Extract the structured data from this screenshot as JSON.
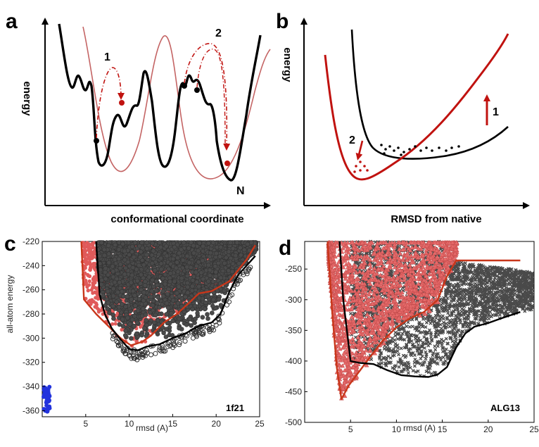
{
  "panels": {
    "a": {
      "letter": "a",
      "ylabel": "energy",
      "xlabel": "conformational coordinate",
      "annot_1": "1",
      "annot_2": "2",
      "annot_n": "N"
    },
    "b": {
      "letter": "b",
      "ylabel": "energy",
      "xlabel": "RMSD from native",
      "annot_1": "1",
      "annot_2": "2"
    },
    "c": {
      "letter": "c",
      "ylabel": "all-atom energy",
      "xlabel": "rmsd (A)",
      "tag": "1f21"
    },
    "d": {
      "letter": "d",
      "xlabel": "rmsd (A)",
      "tag": "ALG13"
    }
  },
  "colors": {
    "red": "#c0120f",
    "light_red": "#c46464",
    "gray": "#4a4a4a",
    "pink": "#e05a5a",
    "blue": "#2233dd",
    "black": "#000000"
  },
  "chart_data": [
    {
      "panel": "c",
      "type": "scatter",
      "xlabel": "rmsd (A)",
      "ylabel": "all-atom energy",
      "xlim": [
        0,
        25
      ],
      "ylim": [
        -365,
        -220
      ],
      "xticks": [
        5,
        10,
        15,
        20,
        25
      ],
      "yticks": [
        -360,
        -340,
        -320,
        -300,
        -280,
        -260,
        -240,
        -220
      ],
      "series": [
        {
          "color": "#c8361a",
          "kind": "line",
          "x": [
            4.5,
            4.8,
            6.2,
            7.6,
            9.0,
            10.2,
            11.5,
            12.5,
            14.0,
            15.5,
            17.0,
            18.0,
            19.5,
            20.5,
            21.5,
            22.5,
            23.5,
            24.5
          ],
          "y": [
            -220,
            -268,
            -280,
            -290,
            -300,
            -306,
            -303,
            -298,
            -287,
            -280,
            -270,
            -263,
            -261,
            -257,
            -253,
            -244,
            -235,
            -223
          ]
        },
        {
          "color": "#000000",
          "kind": "line",
          "x": [
            6.2,
            6.6,
            7.2,
            8.0,
            9.0,
            10.0,
            11.0,
            12.0,
            13.5,
            15.0,
            16.5,
            18.0,
            19.5,
            20.5,
            21.5,
            22.5,
            23.5,
            24.5
          ],
          "y": [
            -220,
            -264,
            -280,
            -292,
            -301,
            -309,
            -310,
            -307,
            -305,
            -300,
            -296,
            -290,
            -287,
            -280,
            -262,
            -248,
            -240,
            -232
          ]
        }
      ]
    },
    {
      "panel": "d",
      "type": "scatter",
      "xlabel": "rmsd (A)",
      "xlim": [
        0,
        25
      ],
      "ylim": [
        -500,
        -205
      ],
      "xticks": [
        5,
        10,
        15,
        20,
        25
      ],
      "yticks": [
        -250,
        -300,
        -350,
        -400,
        -450,
        -500
      ],
      "series": [
        {
          "color": "#c8361a",
          "kind": "line",
          "x": [
            2.5,
            3.0,
            3.5,
            4.0,
            4.8,
            5.8,
            7.0,
            8.5,
            10.0,
            11.5,
            13.0,
            14.5,
            15.5,
            16.5,
            18.0,
            20.0,
            22.0,
            23.5
          ],
          "y": [
            -205,
            -320,
            -410,
            -462,
            -440,
            -420,
            -396,
            -367,
            -345,
            -330,
            -320,
            -300,
            -262,
            -236,
            -236,
            -236,
            -236,
            -236
          ]
        },
        {
          "color": "#000000",
          "kind": "line",
          "x": [
            3.8,
            4.2,
            5.0,
            6.0,
            7.5,
            9.0,
            10.5,
            12.0,
            13.5,
            14.5,
            15.5,
            16.5,
            17.5,
            18.5,
            20.0,
            21.5,
            22.5,
            23.5
          ],
          "y": [
            -205,
            -300,
            -400,
            -403,
            -405,
            -415,
            -423,
            -425,
            -426,
            -422,
            -410,
            -378,
            -355,
            -344,
            -338,
            -330,
            -325,
            -320
          ]
        }
      ]
    }
  ]
}
